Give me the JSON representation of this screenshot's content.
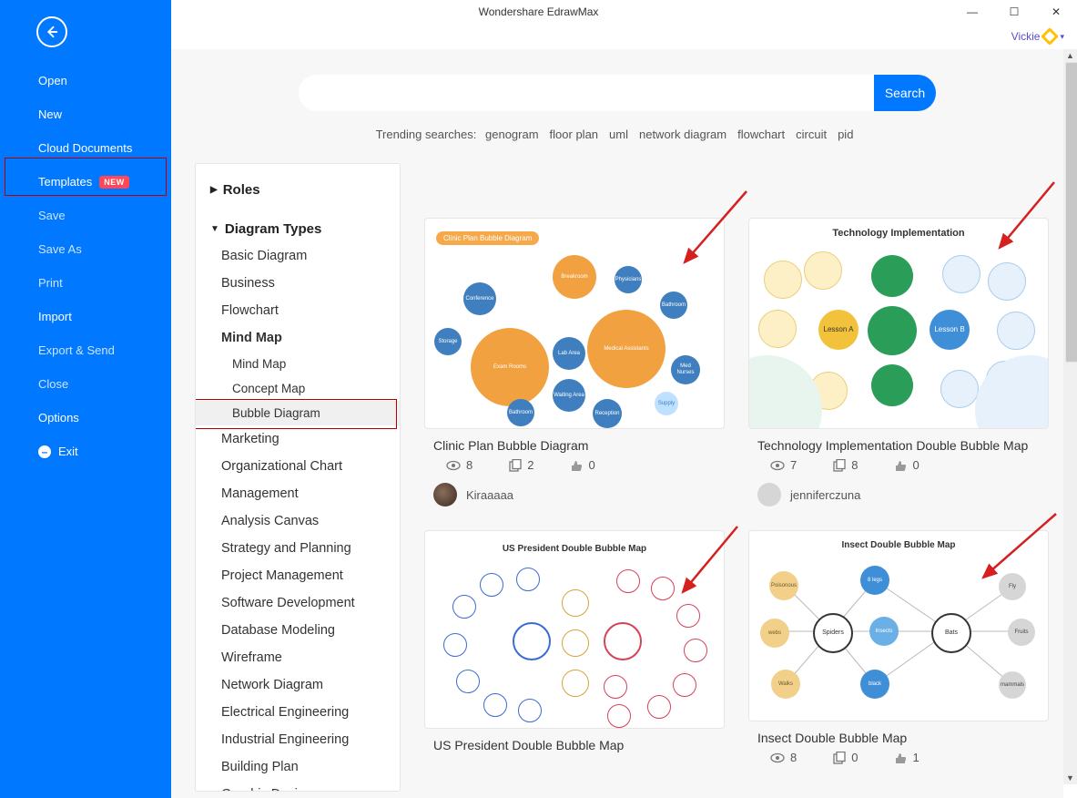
{
  "titlebar": {
    "title": "Wondershare EdrawMax"
  },
  "user": {
    "name": "Vickie"
  },
  "sidebar": {
    "items": [
      {
        "label": "Open",
        "strong": true
      },
      {
        "label": "New",
        "strong": true
      },
      {
        "label": "Cloud Documents",
        "strong": true
      },
      {
        "label": "Templates",
        "strong": true,
        "badge": "NEW",
        "selected": true
      },
      {
        "label": "Save"
      },
      {
        "label": "Save As"
      },
      {
        "label": "Print"
      },
      {
        "label": "Import",
        "strong": true
      },
      {
        "label": "Export & Send"
      },
      {
        "label": "Close"
      },
      {
        "label": "Options",
        "strong": true
      },
      {
        "label": "Exit",
        "icon": "minus",
        "strong": true
      }
    ]
  },
  "search": {
    "button": "Search",
    "trending_label": "Trending searches:",
    "trending": [
      "genogram",
      "floor plan",
      "uml",
      "network diagram",
      "flowchart",
      "circuit",
      "pid"
    ]
  },
  "categories": {
    "roles_label": "Roles",
    "types_label": "Diagram Types",
    "items": [
      "Basic Diagram",
      "Business",
      "Flowchart",
      {
        "label": "Mind Map",
        "bold": true,
        "children": [
          "Mind Map",
          "Concept Map",
          "Bubble Diagram"
        ]
      },
      "Marketing",
      "Organizational Chart",
      "Management",
      "Analysis Canvas",
      "Strategy and Planning",
      "Project Management",
      "Software Development",
      "Database Modeling",
      "Wireframe",
      "Network Diagram",
      "Electrical Engineering",
      "Industrial Engineering",
      "Building Plan",
      "Graphic Design"
    ],
    "selected_sub": "Bubble Diagram"
  },
  "templates": [
    {
      "title": "Clinic Plan Bubble Diagram",
      "views": "8",
      "copies": "2",
      "likes": "0",
      "author": "Kiraaaaa",
      "thumb_label": "Clinic Plan Bubble Diagram",
      "colors": {
        "main": "#f2a140",
        "sec": "#3f7fbf",
        "light": "#bfe1ff"
      }
    },
    {
      "title": "Technology Implementation Double Bubble Map",
      "views": "7",
      "copies": "8",
      "likes": "0",
      "author": "jenniferczuna",
      "thumb_label": "Technology Implementation",
      "colors": {
        "a": "#f3c23b",
        "b": "#2a9d58",
        "c": "#3f8fd8",
        "lt": "#cfe6f7"
      }
    },
    {
      "title": "US President Double Bubble Map",
      "views": "",
      "copies": "",
      "likes": "",
      "thumb_label": "US President Double Bubble Map",
      "colors": {
        "a": "#3a6bd6",
        "b": "#d6425a"
      }
    },
    {
      "title": "Insect Double Bubble Map",
      "views": "8",
      "copies": "0",
      "likes": "1",
      "thumb_label": "Insect Double Bubble Map",
      "colors": {
        "a": "#f2c879",
        "b": "#3f8fd8",
        "c": "#63c28a"
      }
    }
  ],
  "annotation": {
    "arrow_color": "#d62020"
  }
}
